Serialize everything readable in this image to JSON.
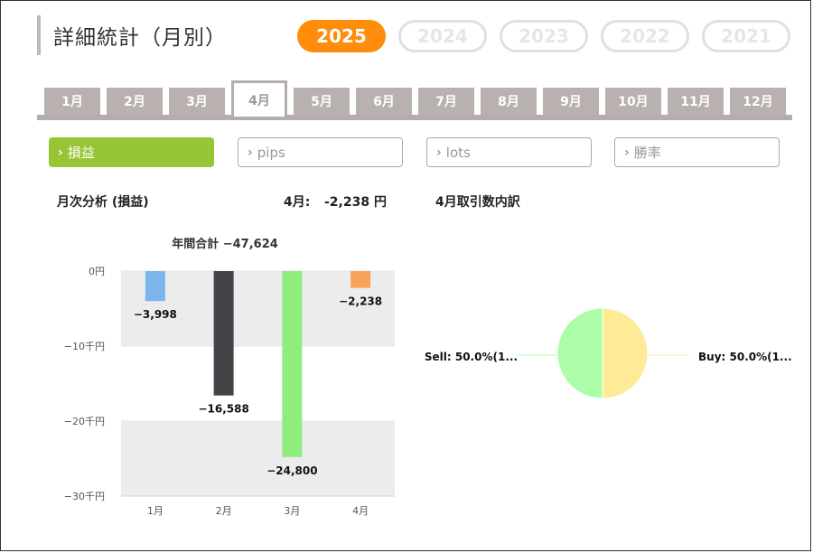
{
  "page": {
    "title": "詳細統計（月別）"
  },
  "years": [
    {
      "label": "2025",
      "active": true
    },
    {
      "label": "2024",
      "active": false
    },
    {
      "label": "2023",
      "active": false
    },
    {
      "label": "2022",
      "active": false
    },
    {
      "label": "2021",
      "active": false
    }
  ],
  "months": [
    "1月",
    "2月",
    "3月",
    "4月",
    "5月",
    "6月",
    "7月",
    "8月",
    "9月",
    "10月",
    "11月",
    "12月"
  ],
  "active_month_index": 3,
  "metrics": [
    {
      "label": "損益",
      "active": true
    },
    {
      "label": "pips",
      "active": false
    },
    {
      "label": "lots",
      "active": false
    },
    {
      "label": "勝率",
      "active": false
    }
  ],
  "summary": {
    "monthly_analysis_label": "月次分析 (損益)",
    "current_month_label": "4月:",
    "current_month_value": "-2,238 円",
    "breakdown_title": "4月取引数内訳"
  },
  "chart_data": [
    {
      "type": "bar",
      "title": "年間合計 −47,624",
      "categories": [
        "1月",
        "2月",
        "3月",
        "4月"
      ],
      "values": [
        -3998,
        -16588,
        -24800,
        -2238
      ],
      "value_labels": [
        "−3,998",
        "−16,588",
        "−24,800",
        "−2,238"
      ],
      "colors": [
        "#7cb5ec",
        "#434348",
        "#90ed7d",
        "#f7a35c"
      ],
      "ylim": [
        -30000,
        0
      ],
      "yticks": [
        0,
        -10000,
        -20000,
        -30000
      ],
      "ytick_labels": [
        "0円",
        "−10千円",
        "−20千円",
        "−30千円"
      ],
      "grid": true,
      "legend": "none"
    },
    {
      "type": "pie",
      "labels": [
        "Sell: 50.0%(1...",
        "Buy: 50.0%(1..."
      ],
      "values": [
        50.0,
        50.0
      ],
      "colors": [
        "#abfda8",
        "#ffeb95"
      ],
      "legend": "none"
    }
  ],
  "colors": {
    "accent_orange": "#ff8c0a",
    "accent_green": "#98c534",
    "tab_gray": "#b9b1af"
  }
}
